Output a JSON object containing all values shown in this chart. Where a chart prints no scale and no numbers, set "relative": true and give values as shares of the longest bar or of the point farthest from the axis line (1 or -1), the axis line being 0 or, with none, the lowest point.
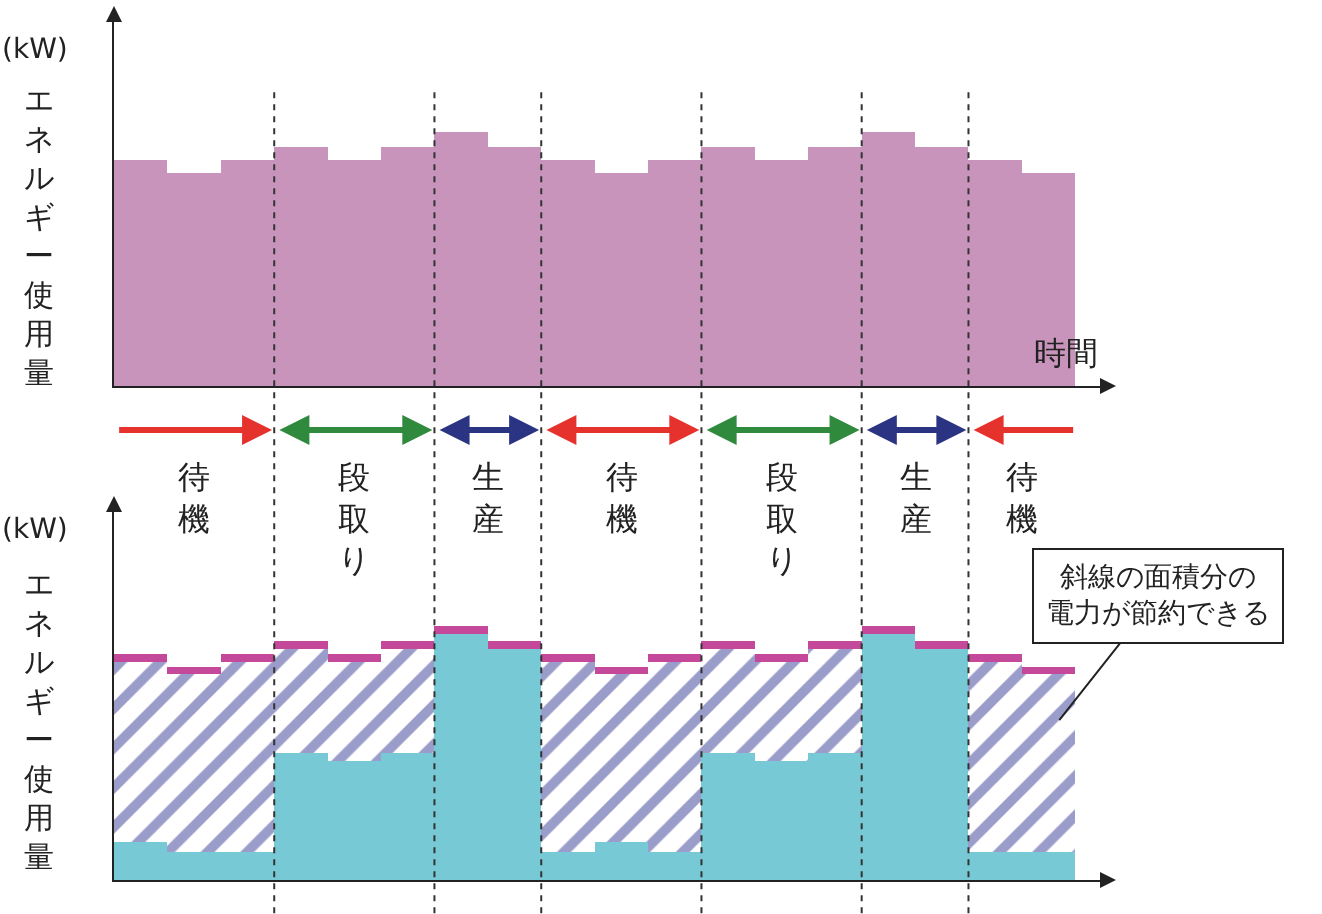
{
  "chart_data": [
    {
      "type": "bar",
      "relative": true,
      "xlabel": "時間",
      "ylabel": "エネルギー使用量",
      "annotations": [
        "(kW)"
      ],
      "categories": [
        null,
        null,
        null,
        null,
        null,
        null,
        null,
        null,
        null,
        null,
        null,
        null,
        null,
        null,
        null,
        null,
        null,
        null
      ],
      "values": [
        0.89,
        0.84,
        0.89,
        0.94,
        0.89,
        0.94,
        1,
        0.94,
        0.89,
        0.84,
        0.89,
        0.94,
        0.89,
        0.94,
        1,
        0.94,
        0.89,
        0.84
      ],
      "color": "#c994bc"
    },
    {
      "type": "bar",
      "relative": true,
      "stacked": true,
      "ylabel": "エネルギー使用量",
      "annotations": [
        "(kW)",
        "待機",
        "段取り",
        "生産",
        "待機",
        "段取り",
        "生産",
        "待機",
        "斜線の面積分の電力が節約できる"
      ],
      "categories": [
        null,
        null,
        null,
        null,
        null,
        null,
        null,
        null,
        null,
        null,
        null,
        null,
        null,
        null,
        null,
        null,
        null,
        null
      ],
      "series": [
        {
          "color": "#77cad5",
          "values": [
            0.15,
            0.11,
            0.11,
            0.5,
            0.47,
            0.5,
            0.97,
            0.91,
            0.11,
            0.15,
            0.11,
            0.5,
            0.47,
            0.5,
            0.97,
            0.91,
            0.11,
            0.11
          ]
        },
        {
          "color": "#9a9cc9",
          "values": [
            0.71,
            0.7,
            0.75,
            0.41,
            0.39,
            0.41,
            0,
            0,
            0.75,
            0.66,
            0.75,
            0.41,
            0.39,
            0.41,
            0,
            0,
            0.75,
            0.7
          ]
        },
        {
          "color": "#c4499a",
          "values": [
            0.03,
            0.03,
            0.03,
            0.03,
            0.03,
            0.03,
            0.03,
            0.03,
            0.03,
            0.03,
            0.03,
            0.03,
            0.03,
            0.03,
            0.03,
            0.03,
            0.03,
            0.03
          ]
        }
      ]
    }
  ]
}
